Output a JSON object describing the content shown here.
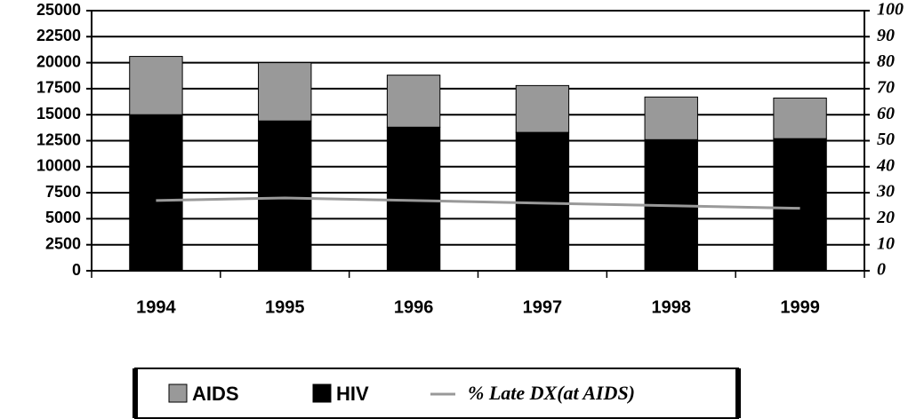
{
  "chart_data": {
    "type": "bar",
    "stacked": true,
    "categories": [
      "1994",
      "1995",
      "1996",
      "1997",
      "1998",
      "1999"
    ],
    "series": [
      {
        "name": "AIDS",
        "color": "#999999",
        "values": [
          5600,
          5600,
          5000,
          4500,
          4100,
          3900
        ]
      },
      {
        "name": "HIV",
        "color": "#000000",
        "values": [
          15000,
          14400,
          13800,
          13300,
          12600,
          12700
        ]
      },
      {
        "name": "% Late DX(at AIDS)",
        "type": "line",
        "axis": "y2",
        "color": "#999999",
        "values": [
          27,
          28,
          27,
          26,
          25,
          24
        ]
      }
    ],
    "ylim": [
      0,
      25000
    ],
    "yticks": [
      0,
      2500,
      5000,
      7500,
      10000,
      12500,
      15000,
      17500,
      20000,
      22500,
      25000
    ],
    "y2lim": [
      0,
      100
    ],
    "y2ticks": [
      0,
      10,
      20,
      30,
      40,
      50,
      60,
      70,
      80,
      90,
      100
    ],
    "grid": true,
    "legend": "bottom"
  }
}
